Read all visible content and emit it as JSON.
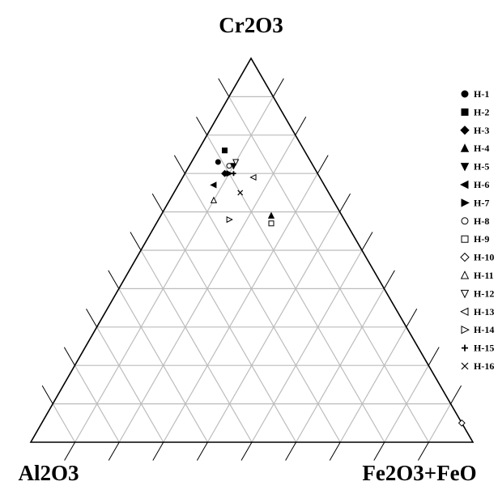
{
  "chart_data": {
    "type": "scatter",
    "subtype": "ternary",
    "grid_step": 0.1,
    "grid": true,
    "legend_position": "right",
    "vertices": {
      "top": "Cr2O3",
      "left": "Al2O3",
      "right": "Fe2O3+FeO"
    },
    "series": [
      {
        "name": "H-1",
        "marker": "circle-filled",
        "points": [
          {
            "Cr2O3": 0.73,
            "Al2O3": 0.21,
            "Fe2O3+FeO": 0.06
          }
        ]
      },
      {
        "name": "H-2",
        "marker": "square-filled",
        "points": [
          {
            "Cr2O3": 0.76,
            "Al2O3": 0.18,
            "Fe2O3+FeO": 0.06
          }
        ]
      },
      {
        "name": "H-3",
        "marker": "diamond-filled",
        "points": [
          {
            "Cr2O3": 0.7,
            "Al2O3": 0.21,
            "Fe2O3+FeO": 0.09
          }
        ]
      },
      {
        "name": "H-4",
        "marker": "triangle-up-filled",
        "points": [
          {
            "Cr2O3": 0.59,
            "Al2O3": 0.16,
            "Fe2O3+FeO": 0.25
          }
        ]
      },
      {
        "name": "H-5",
        "marker": "triangle-down-filled",
        "points": [
          {
            "Cr2O3": 0.72,
            "Al2O3": 0.18,
            "Fe2O3+FeO": 0.1
          }
        ]
      },
      {
        "name": "H-6",
        "marker": "triangle-left-filled",
        "points": [
          {
            "Cr2O3": 0.67,
            "Al2O3": 0.25,
            "Fe2O3+FeO": 0.08
          }
        ]
      },
      {
        "name": "H-7",
        "marker": "triangle-right-filled",
        "points": [
          {
            "Cr2O3": 0.7,
            "Al2O3": 0.2,
            "Fe2O3+FeO": 0.1
          }
        ]
      },
      {
        "name": "H-8",
        "marker": "circle-open",
        "points": [
          {
            "Cr2O3": 0.72,
            "Al2O3": 0.19,
            "Fe2O3+FeO": 0.09
          }
        ]
      },
      {
        "name": "H-9",
        "marker": "square-open",
        "points": [
          {
            "Cr2O3": 0.57,
            "Al2O3": 0.17,
            "Fe2O3+FeO": 0.26
          }
        ]
      },
      {
        "name": "H-10",
        "marker": "diamond-open",
        "points": [
          {
            "Cr2O3": 0.05,
            "Al2O3": 0.0,
            "Fe2O3+FeO": 0.95
          }
        ]
      },
      {
        "name": "H-11",
        "marker": "triangle-up-open",
        "points": [
          {
            "Cr2O3": 0.63,
            "Al2O3": 0.27,
            "Fe2O3+FeO": 0.1
          }
        ]
      },
      {
        "name": "H-12",
        "marker": "triangle-down-open",
        "points": [
          {
            "Cr2O3": 0.73,
            "Al2O3": 0.17,
            "Fe2O3+FeO": 0.1
          }
        ]
      },
      {
        "name": "H-13",
        "marker": "triangle-left-open",
        "points": [
          {
            "Cr2O3": 0.69,
            "Al2O3": 0.15,
            "Fe2O3+FeO": 0.16
          }
        ]
      },
      {
        "name": "H-14",
        "marker": "triangle-right-open",
        "points": [
          {
            "Cr2O3": 0.58,
            "Al2O3": 0.26,
            "Fe2O3+FeO": 0.16
          }
        ]
      },
      {
        "name": "H-15",
        "marker": "plus",
        "points": [
          {
            "Cr2O3": 0.7,
            "Al2O3": 0.19,
            "Fe2O3+FeO": 0.11
          }
        ]
      },
      {
        "name": "H-16",
        "marker": "cross",
        "points": [
          {
            "Cr2O3": 0.65,
            "Al2O3": 0.2,
            "Fe2O3+FeO": 0.15
          }
        ]
      }
    ]
  }
}
